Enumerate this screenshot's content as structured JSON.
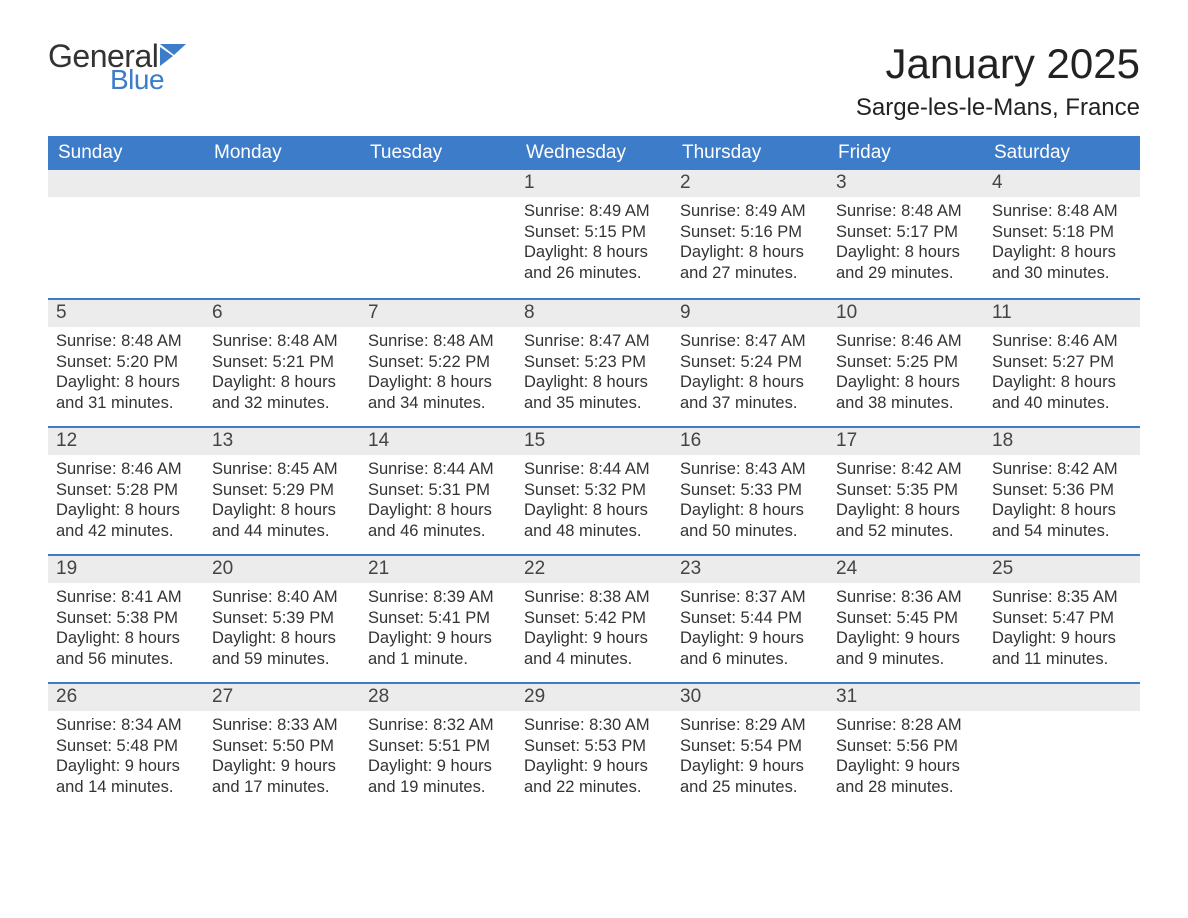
{
  "logo": {
    "line1": "General",
    "line2": "Blue"
  },
  "title": "January 2025",
  "location": "Sarge-les-le-Mans, France",
  "colors": {
    "accent": "#3d7cc9",
    "row_bg": "#ececec",
    "text": "#333333",
    "bg": "#ffffff"
  },
  "fonts": {
    "title_size": 42,
    "location_size": 24,
    "dayheader_size": 19,
    "body_size": 16.5
  },
  "day_headers": [
    "Sunday",
    "Monday",
    "Tuesday",
    "Wednesday",
    "Thursday",
    "Friday",
    "Saturday"
  ],
  "weeks": [
    [
      {
        "day": "",
        "lines": [
          "",
          "",
          "",
          ""
        ]
      },
      {
        "day": "",
        "lines": [
          "",
          "",
          "",
          ""
        ]
      },
      {
        "day": "",
        "lines": [
          "",
          "",
          "",
          ""
        ]
      },
      {
        "day": "1",
        "lines": [
          "Sunrise: 8:49 AM",
          "Sunset: 5:15 PM",
          "Daylight: 8 hours",
          "and 26 minutes."
        ]
      },
      {
        "day": "2",
        "lines": [
          "Sunrise: 8:49 AM",
          "Sunset: 5:16 PM",
          "Daylight: 8 hours",
          "and 27 minutes."
        ]
      },
      {
        "day": "3",
        "lines": [
          "Sunrise: 8:48 AM",
          "Sunset: 5:17 PM",
          "Daylight: 8 hours",
          "and 29 minutes."
        ]
      },
      {
        "day": "4",
        "lines": [
          "Sunrise: 8:48 AM",
          "Sunset: 5:18 PM",
          "Daylight: 8 hours",
          "and 30 minutes."
        ]
      }
    ],
    [
      {
        "day": "5",
        "lines": [
          "Sunrise: 8:48 AM",
          "Sunset: 5:20 PM",
          "Daylight: 8 hours",
          "and 31 minutes."
        ]
      },
      {
        "day": "6",
        "lines": [
          "Sunrise: 8:48 AM",
          "Sunset: 5:21 PM",
          "Daylight: 8 hours",
          "and 32 minutes."
        ]
      },
      {
        "day": "7",
        "lines": [
          "Sunrise: 8:48 AM",
          "Sunset: 5:22 PM",
          "Daylight: 8 hours",
          "and 34 minutes."
        ]
      },
      {
        "day": "8",
        "lines": [
          "Sunrise: 8:47 AM",
          "Sunset: 5:23 PM",
          "Daylight: 8 hours",
          "and 35 minutes."
        ]
      },
      {
        "day": "9",
        "lines": [
          "Sunrise: 8:47 AM",
          "Sunset: 5:24 PM",
          "Daylight: 8 hours",
          "and 37 minutes."
        ]
      },
      {
        "day": "10",
        "lines": [
          "Sunrise: 8:46 AM",
          "Sunset: 5:25 PM",
          "Daylight: 8 hours",
          "and 38 minutes."
        ]
      },
      {
        "day": "11",
        "lines": [
          "Sunrise: 8:46 AM",
          "Sunset: 5:27 PM",
          "Daylight: 8 hours",
          "and 40 minutes."
        ]
      }
    ],
    [
      {
        "day": "12",
        "lines": [
          "Sunrise: 8:46 AM",
          "Sunset: 5:28 PM",
          "Daylight: 8 hours",
          "and 42 minutes."
        ]
      },
      {
        "day": "13",
        "lines": [
          "Sunrise: 8:45 AM",
          "Sunset: 5:29 PM",
          "Daylight: 8 hours",
          "and 44 minutes."
        ]
      },
      {
        "day": "14",
        "lines": [
          "Sunrise: 8:44 AM",
          "Sunset: 5:31 PM",
          "Daylight: 8 hours",
          "and 46 minutes."
        ]
      },
      {
        "day": "15",
        "lines": [
          "Sunrise: 8:44 AM",
          "Sunset: 5:32 PM",
          "Daylight: 8 hours",
          "and 48 minutes."
        ]
      },
      {
        "day": "16",
        "lines": [
          "Sunrise: 8:43 AM",
          "Sunset: 5:33 PM",
          "Daylight: 8 hours",
          "and 50 minutes."
        ]
      },
      {
        "day": "17",
        "lines": [
          "Sunrise: 8:42 AM",
          "Sunset: 5:35 PM",
          "Daylight: 8 hours",
          "and 52 minutes."
        ]
      },
      {
        "day": "18",
        "lines": [
          "Sunrise: 8:42 AM",
          "Sunset: 5:36 PM",
          "Daylight: 8 hours",
          "and 54 minutes."
        ]
      }
    ],
    [
      {
        "day": "19",
        "lines": [
          "Sunrise: 8:41 AM",
          "Sunset: 5:38 PM",
          "Daylight: 8 hours",
          "and 56 minutes."
        ]
      },
      {
        "day": "20",
        "lines": [
          "Sunrise: 8:40 AM",
          "Sunset: 5:39 PM",
          "Daylight: 8 hours",
          "and 59 minutes."
        ]
      },
      {
        "day": "21",
        "lines": [
          "Sunrise: 8:39 AM",
          "Sunset: 5:41 PM",
          "Daylight: 9 hours",
          "and 1 minute."
        ]
      },
      {
        "day": "22",
        "lines": [
          "Sunrise: 8:38 AM",
          "Sunset: 5:42 PM",
          "Daylight: 9 hours",
          "and 4 minutes."
        ]
      },
      {
        "day": "23",
        "lines": [
          "Sunrise: 8:37 AM",
          "Sunset: 5:44 PM",
          "Daylight: 9 hours",
          "and 6 minutes."
        ]
      },
      {
        "day": "24",
        "lines": [
          "Sunrise: 8:36 AM",
          "Sunset: 5:45 PM",
          "Daylight: 9 hours",
          "and 9 minutes."
        ]
      },
      {
        "day": "25",
        "lines": [
          "Sunrise: 8:35 AM",
          "Sunset: 5:47 PM",
          "Daylight: 9 hours",
          "and 11 minutes."
        ]
      }
    ],
    [
      {
        "day": "26",
        "lines": [
          "Sunrise: 8:34 AM",
          "Sunset: 5:48 PM",
          "Daylight: 9 hours",
          "and 14 minutes."
        ]
      },
      {
        "day": "27",
        "lines": [
          "Sunrise: 8:33 AM",
          "Sunset: 5:50 PM",
          "Daylight: 9 hours",
          "and 17 minutes."
        ]
      },
      {
        "day": "28",
        "lines": [
          "Sunrise: 8:32 AM",
          "Sunset: 5:51 PM",
          "Daylight: 9 hours",
          "and 19 minutes."
        ]
      },
      {
        "day": "29",
        "lines": [
          "Sunrise: 8:30 AM",
          "Sunset: 5:53 PM",
          "Daylight: 9 hours",
          "and 22 minutes."
        ]
      },
      {
        "day": "30",
        "lines": [
          "Sunrise: 8:29 AM",
          "Sunset: 5:54 PM",
          "Daylight: 9 hours",
          "and 25 minutes."
        ]
      },
      {
        "day": "31",
        "lines": [
          "Sunrise: 8:28 AM",
          "Sunset: 5:56 PM",
          "Daylight: 9 hours",
          "and 28 minutes."
        ]
      },
      {
        "day": "",
        "lines": [
          "",
          "",
          "",
          ""
        ]
      }
    ]
  ]
}
